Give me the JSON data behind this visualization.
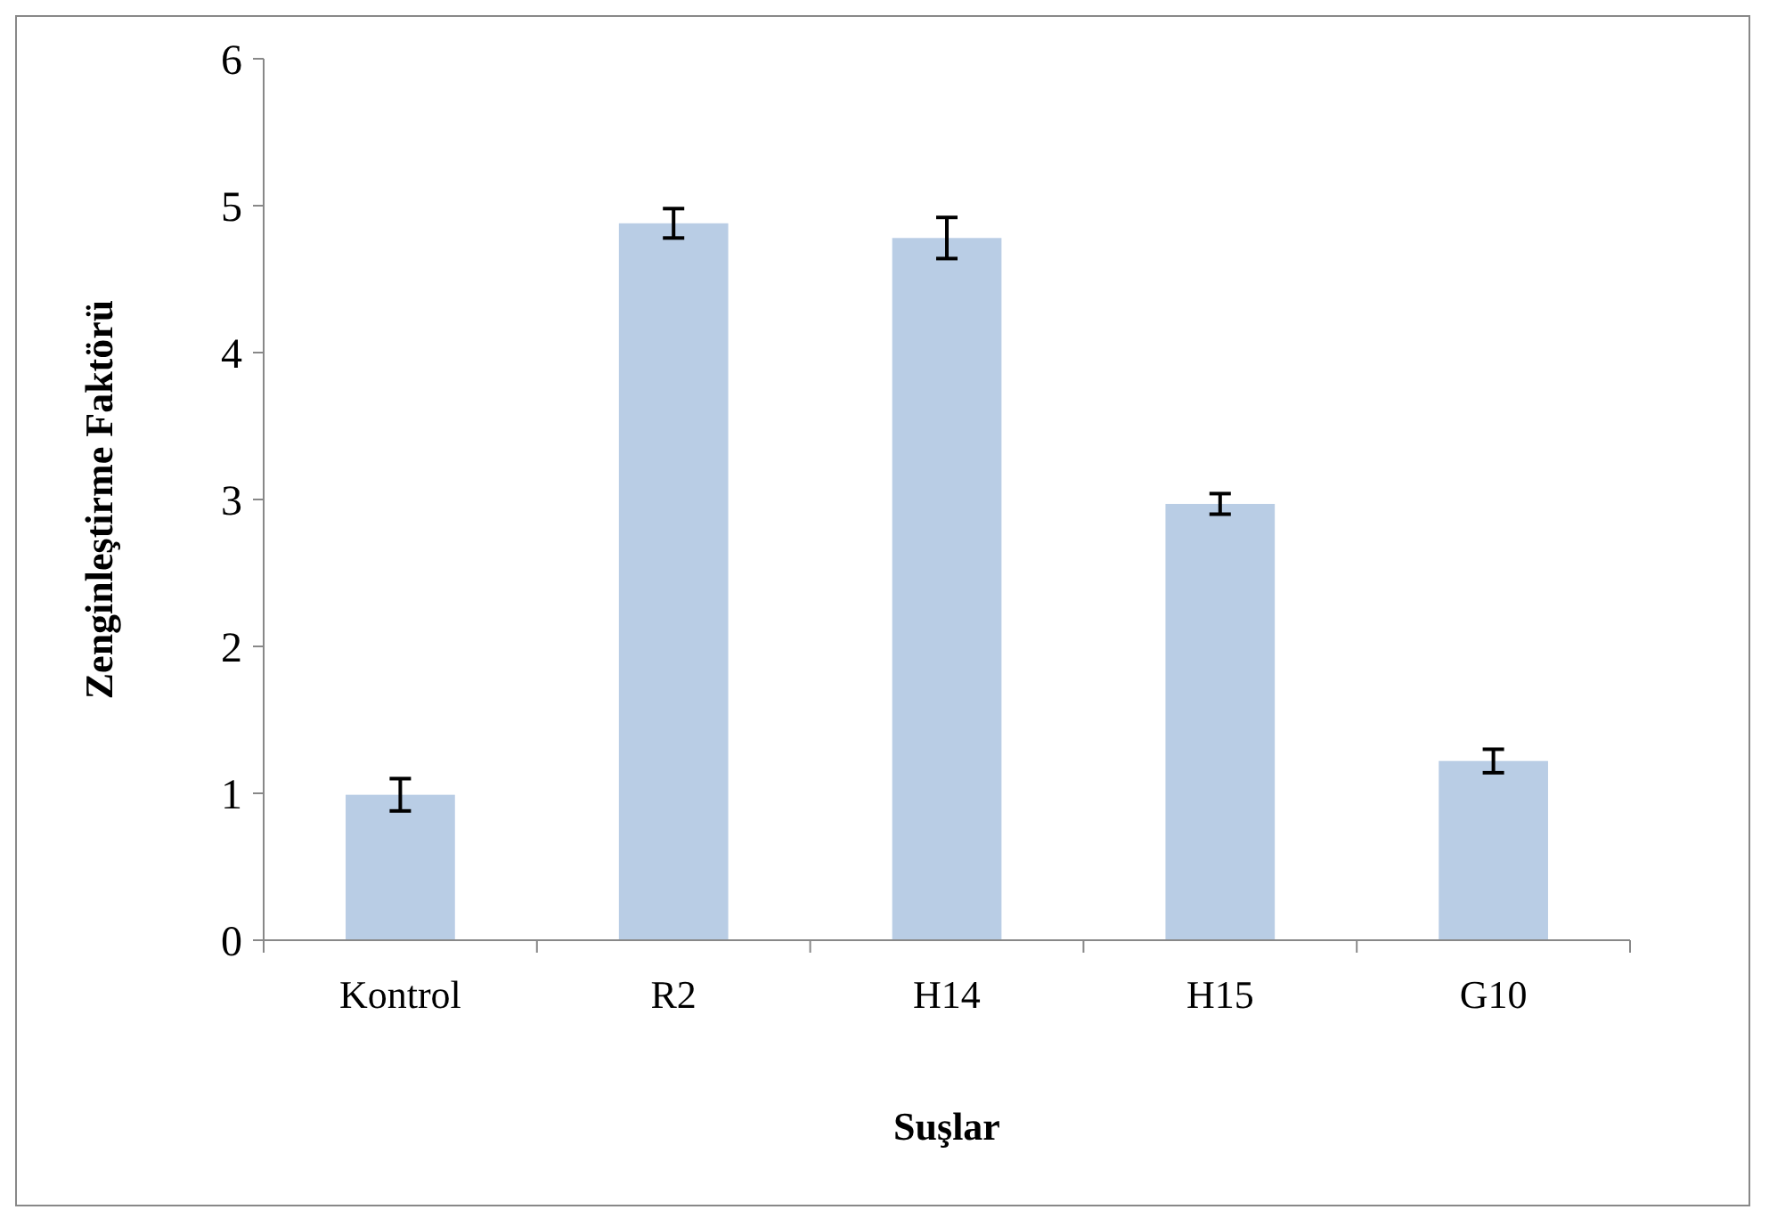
{
  "chart_data": {
    "type": "bar",
    "xlabel": "Suşlar",
    "ylabel": "Zenginleştirme Faktörü",
    "categories": [
      "Kontrol",
      "R2",
      "H14",
      "H15",
      "G10"
    ],
    "values": [
      0.99,
      4.88,
      4.78,
      2.97,
      1.22
    ],
    "errors": [
      0.11,
      0.1,
      0.14,
      0.07,
      0.08
    ],
    "color": "#b9cde5",
    "ylim": [
      0,
      6
    ],
    "yticks": [
      0,
      1,
      2,
      3,
      4,
      5,
      6
    ],
    "grid": false
  }
}
